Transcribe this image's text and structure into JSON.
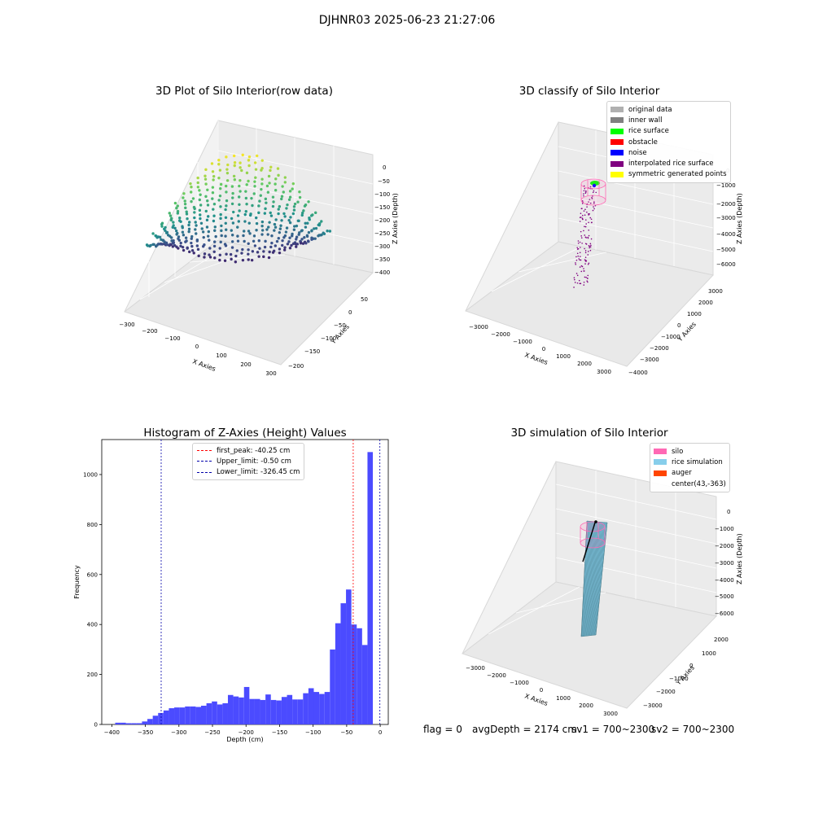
{
  "figure": {
    "suptitle": "DJHNR03 2025-06-23 21:27:06"
  },
  "colors": {
    "original": "#b0b0b0",
    "inner_wall": "#808080",
    "rice_surface": "#00ff00",
    "obstacle": "#ff0000",
    "noise": "#0000ff",
    "interpolated": "#800080",
    "symmetric": "#ffff00",
    "hist_bar": "#4b4bff",
    "first_peak_line": "#ff0000",
    "limit_line": "#0000aa",
    "silo": "#ff69b4",
    "rice_sim": "#87ceeb",
    "auger": "#ff4500"
  },
  "chart_data": [
    {
      "type": "scatter",
      "title": "3D Plot of Silo Interior(row data)",
      "xlabel": "X Axies",
      "ylabel": "Y Axies",
      "zlabel": "Z Axies (Depth)",
      "x_ticks": [
        "−300",
        "−200",
        "−100",
        "0",
        "100",
        "200",
        "300"
      ],
      "y_ticks": [
        "50",
        "0",
        "−50",
        "−100",
        "−150",
        "−200"
      ],
      "z_ticks": [
        "0",
        "−50",
        "−100",
        "−150",
        "−200",
        "−250",
        "−300",
        "−350",
        "−400"
      ],
      "xlim": [
        -300,
        300
      ],
      "ylim": [
        -200,
        50
      ],
      "zlim": [
        -400,
        0
      ]
    },
    {
      "type": "scatter",
      "title": "3D classify of Silo Interior",
      "xlabel": "X Axies",
      "ylabel": "Y Axies",
      "zlabel": "Z Axies (Depth)",
      "x_ticks": [
        "−3000",
        "−2000",
        "−1000",
        "0",
        "1000",
        "2000",
        "3000"
      ],
      "y_ticks": [
        "3000",
        "2000",
        "1000",
        "0",
        "−1000",
        "−2000",
        "−3000",
        "−4000"
      ],
      "z_ticks": [
        "0",
        "−1000",
        "−2000",
        "−3000",
        "−4000",
        "−5000",
        "−6000"
      ],
      "legend": [
        "original data",
        "inner wall",
        "rice surface",
        "obstacle",
        "noise",
        "interpolated rice surface",
        "symmetric generated points"
      ]
    },
    {
      "type": "bar",
      "title": "Histogram of Z-Axies (Height) Values",
      "xlabel": "Depth (cm)",
      "ylabel": "Frequency",
      "x_ticks": [
        -400,
        -350,
        -300,
        -250,
        -200,
        -150,
        -100,
        -50,
        0
      ],
      "x_tick_labels": [
        "−400",
        "−350",
        "−300",
        "−250",
        "−200",
        "−150",
        "−100",
        "−50",
        "0"
      ],
      "y_ticks": [
        0,
        200,
        400,
        600,
        800,
        1000
      ],
      "xlim": [
        -415,
        12
      ],
      "ylim": [
        0,
        1140
      ],
      "bins": {
        "edges_start": -395,
        "width": 8,
        "values": [
          7,
          7,
          5,
          5,
          5,
          12,
          22,
          35,
          46,
          56,
          65,
          68,
          68,
          72,
          72,
          70,
          75,
          85,
          92,
          80,
          85,
          118,
          112,
          108,
          150,
          102,
          102,
          98,
          120,
          98,
          96,
          110,
          118,
          100,
          100,
          125,
          145,
          130,
          122,
          130,
          300,
          405,
          485,
          540,
          400,
          385,
          318,
          1090
        ]
      },
      "vlines": [
        {
          "label": "first_peak: -40.25 cm",
          "x": -40.25,
          "kind": "first_peak"
        },
        {
          "label": "Upper_limit: -0.50 cm",
          "x": -0.5,
          "kind": "limit"
        },
        {
          "label": "Lower_limit: -326.45 cm",
          "x": -326.45,
          "kind": "limit"
        }
      ]
    },
    {
      "type": "scatter",
      "title": "3D simulation of Silo Interior",
      "xlabel": "X Axies",
      "ylabel": "Y Axies",
      "zlabel": "Z Axies (Depth)",
      "x_ticks": [
        "−3000",
        "−2000",
        "−1000",
        "0",
        "1000",
        "2000",
        "3000"
      ],
      "y_ticks": [
        "2000",
        "1000",
        "0",
        "−1000",
        "−2000",
        "−3000"
      ],
      "z_ticks": [
        "0",
        "−1000",
        "−2000",
        "−3000",
        "−4000",
        "−5000",
        "−6000"
      ],
      "legend": [
        "silo",
        "rice simulation",
        "auger",
        "center(43,-363)"
      ]
    }
  ],
  "footer": {
    "flag": "flag = 0",
    "avg_depth": "avgDepth = 2174 cm",
    "sv1": "sv1 = 700~2300",
    "sv2": "sv2 = 700~2300"
  }
}
